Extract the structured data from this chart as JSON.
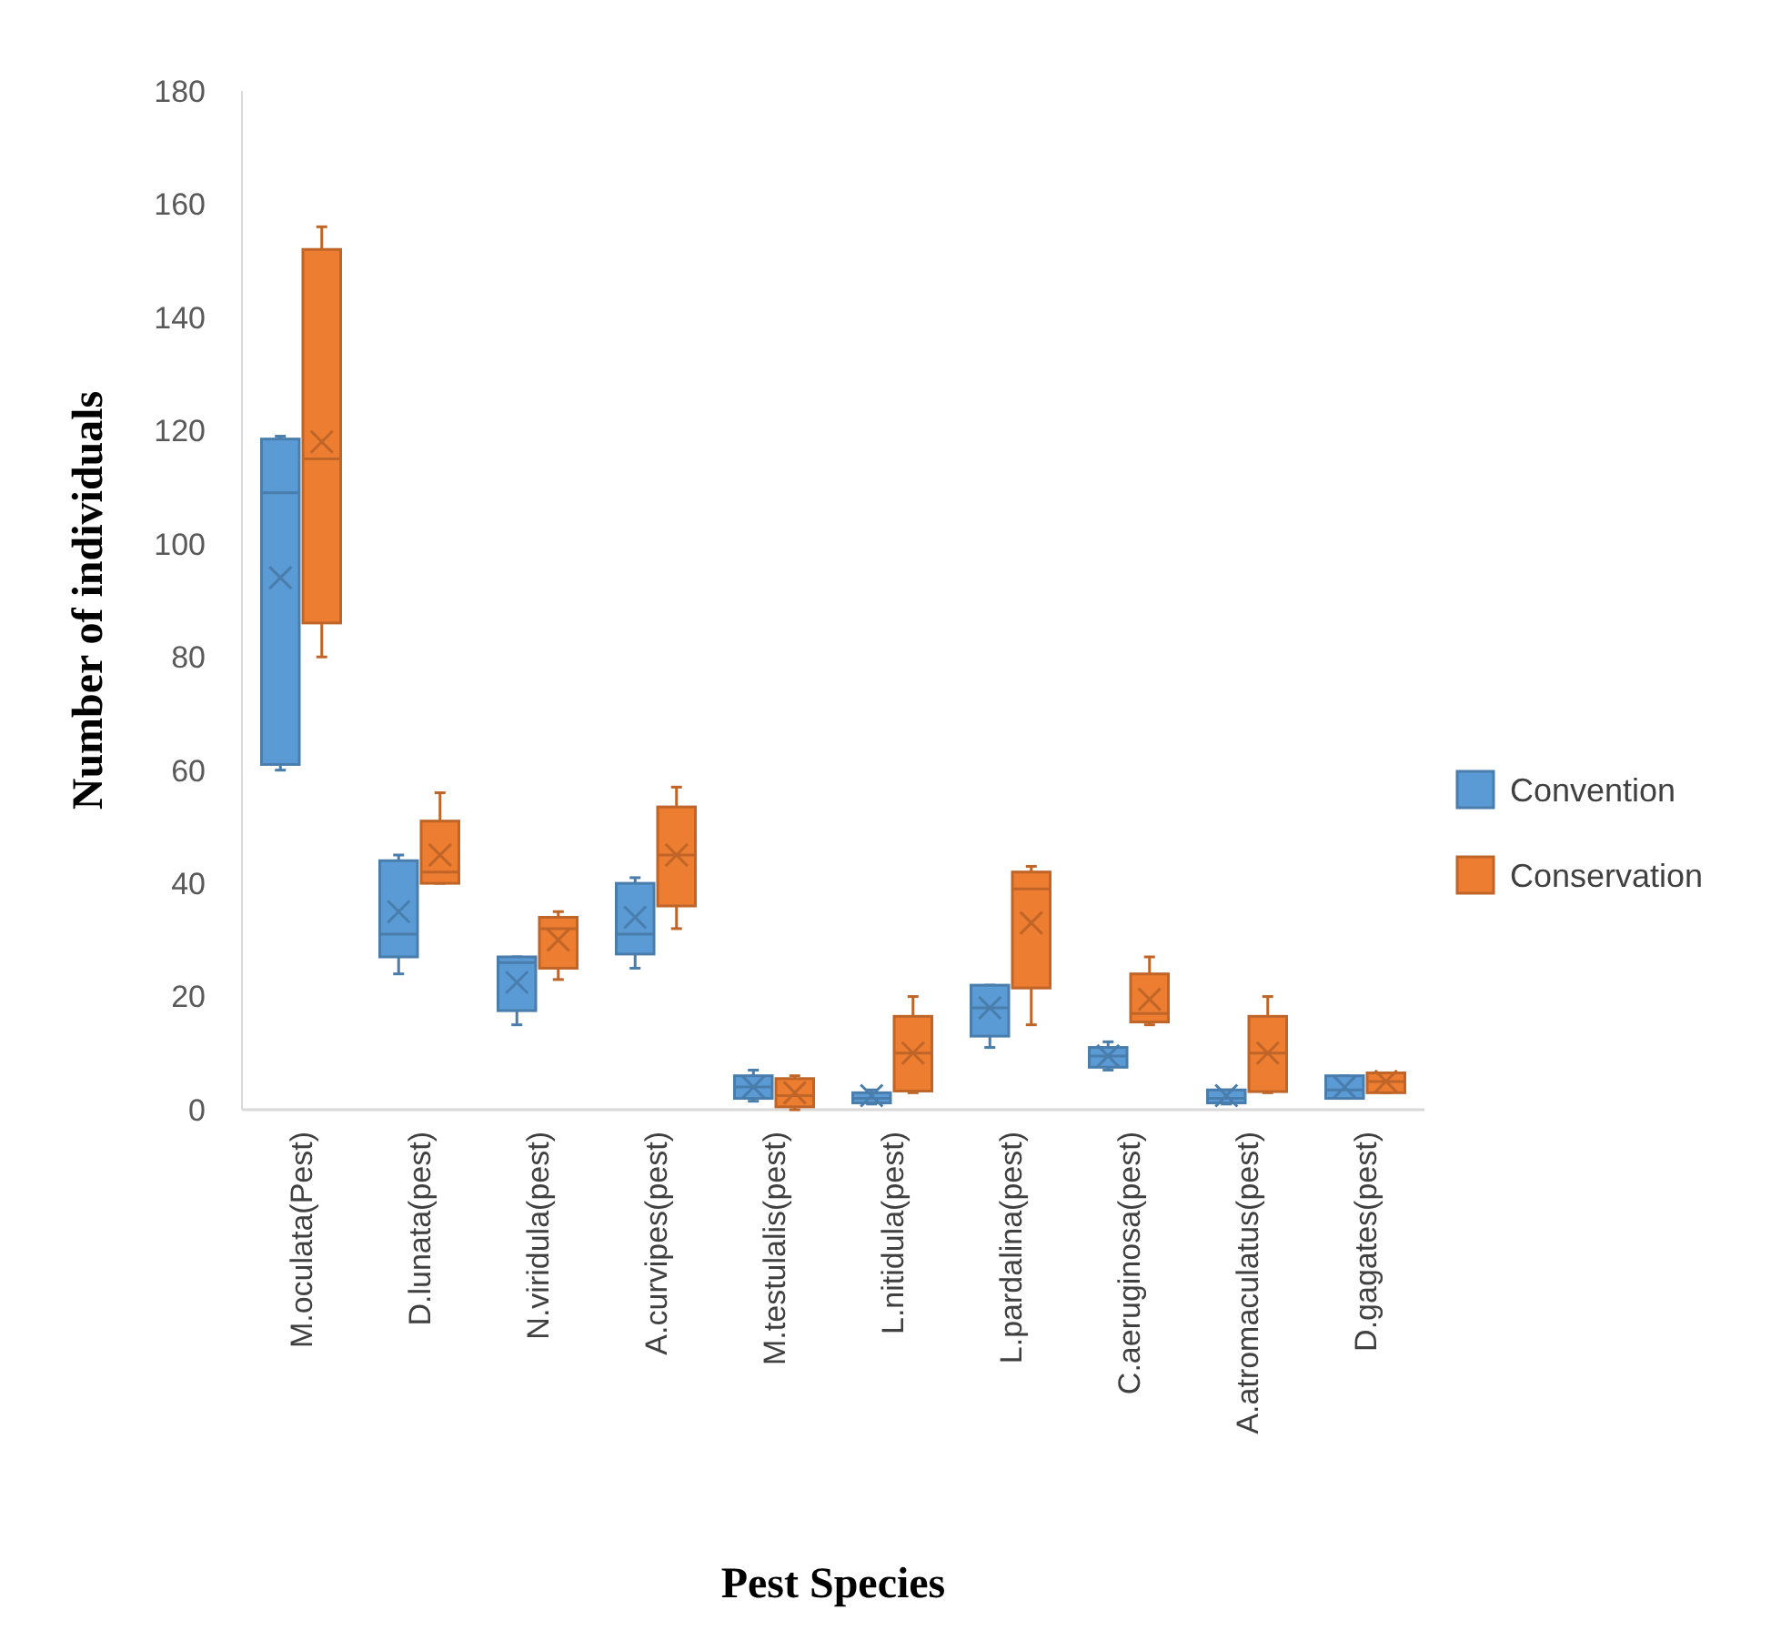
{
  "chart_data": {
    "type": "box",
    "xlabel": "Pest Species",
    "ylabel": "Number of individuals",
    "categories": [
      "M.oculata(Pest)",
      "D.lunata(pest)",
      "N.viridula(pest)",
      "A.curvipes(pest)",
      "M.testulalis(pest)",
      "L.nitidula(pest)",
      "L.pardalina(pest)",
      "C.aeruginosa(pest)",
      "A.atromaculatus(pest)",
      "D.gagates(pest)"
    ],
    "ylim": [
      0,
      180
    ],
    "yticks": [
      0,
      20,
      40,
      60,
      80,
      100,
      120,
      140,
      160,
      180
    ],
    "grid": false,
    "legend": "right",
    "series": [
      {
        "name": "Convention",
        "color": "#5b9bd5",
        "boxes": [
          {
            "low": 60,
            "q1": 61,
            "median": 109,
            "q3": 118.5,
            "high": 119,
            "mean": 94
          },
          {
            "low": 24,
            "q1": 27,
            "median": 31,
            "q3": 44,
            "high": 45,
            "mean": 35
          },
          {
            "low": 15,
            "q1": 17.5,
            "median": 26,
            "q3": 27,
            "high": 27,
            "mean": 22.5
          },
          {
            "low": 25,
            "q1": 27.5,
            "median": 31,
            "q3": 40,
            "high": 41,
            "mean": 34
          },
          {
            "low": 1.5,
            "q1": 2,
            "median": 4,
            "q3": 6,
            "high": 7,
            "mean": 4
          },
          {
            "low": 1,
            "q1": 1.2,
            "median": 2,
            "q3": 3,
            "high": 3.5,
            "mean": 2.5
          },
          {
            "low": 11,
            "q1": 13,
            "median": 18,
            "q3": 22,
            "high": 22,
            "mean": 18
          },
          {
            "low": 7,
            "q1": 7.5,
            "median": 9.5,
            "q3": 11,
            "high": 12,
            "mean": 9.5
          },
          {
            "low": 1,
            "q1": 1.2,
            "median": 2,
            "q3": 3.5,
            "high": 3.5,
            "mean": 2.5
          },
          {
            "low": 2,
            "q1": 2,
            "median": 3.5,
            "q3": 6,
            "high": 6,
            "mean": 4
          }
        ]
      },
      {
        "name": "Conservation",
        "color": "#ed7d31",
        "boxes": [
          {
            "low": 80,
            "q1": 86,
            "median": 115,
            "q3": 152,
            "high": 156,
            "mean": 118
          },
          {
            "low": 40,
            "q1": 40,
            "median": 42,
            "q3": 51,
            "high": 56,
            "mean": 45
          },
          {
            "low": 23,
            "q1": 25,
            "median": 32,
            "q3": 34,
            "high": 35,
            "mean": 30
          },
          {
            "low": 32,
            "q1": 36,
            "median": 45,
            "q3": 53.5,
            "high": 57,
            "mean": 45
          },
          {
            "low": 0,
            "q1": 0.5,
            "median": 2.5,
            "q3": 5.5,
            "high": 6,
            "mean": 3
          },
          {
            "low": 3,
            "q1": 3.3,
            "median": 10,
            "q3": 16.5,
            "high": 20,
            "mean": 10
          },
          {
            "low": 15,
            "q1": 21.5,
            "median": 39,
            "q3": 42,
            "high": 43,
            "mean": 33
          },
          {
            "low": 15,
            "q1": 15.5,
            "median": 17,
            "q3": 24,
            "high": 27,
            "mean": 19.5
          },
          {
            "low": 3,
            "q1": 3.2,
            "median": 10,
            "q3": 16.5,
            "high": 20,
            "mean": 10
          },
          {
            "low": 3,
            "q1": 3,
            "median": 5,
            "q3": 6.5,
            "high": 6.5,
            "mean": 5
          }
        ]
      }
    ]
  }
}
